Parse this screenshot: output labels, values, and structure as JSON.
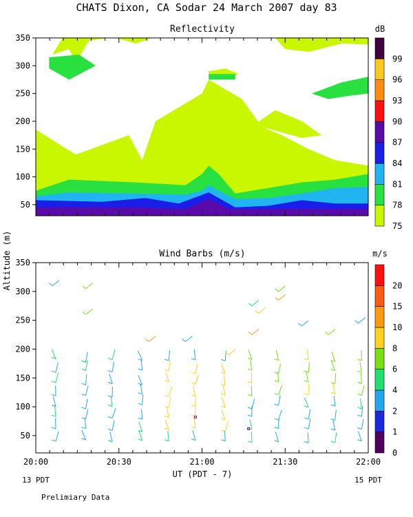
{
  "title": "CHATS Dixon, CA  Sodar  24 March 2007  day  83",
  "y_axis_label": "Altitude (m)",
  "x_axis_label": "UT  (PDT - 7)",
  "x_left_note": "13 PDT",
  "x_right_note": "15 PDT",
  "footer_note": "Prelimiary Data",
  "chart_data": [
    {
      "type": "heatmap",
      "title": "Reflectivity",
      "colorbar_label": "dB",
      "x_ticks": [
        "20:00",
        "20:30",
        "21:00",
        "21:30",
        "22:00"
      ],
      "y_ticks": [
        50,
        100,
        150,
        200,
        250,
        300,
        350
      ],
      "xlim": [
        "20:00",
        "22:00"
      ],
      "ylim": [
        30,
        350
      ],
      "levels": [
        75,
        78,
        81,
        84,
        87,
        90,
        93,
        96,
        99
      ],
      "level_colors": [
        "#c8f700",
        "#28e040",
        "#20b4f0",
        "#1a1ee8",
        "#5a0aa8",
        "#ff1010",
        "#ff8a10",
        "#ffc81e",
        "#400040"
      ],
      "approx_layer_tops_m": {
        "87": 45,
        "84": 60,
        "81": 75,
        "78": 95,
        "75": 125
      }
    },
    {
      "type": "scatter",
      "title": "Wind Barbs (m/s)",
      "colorbar_label": "m/s",
      "x_ticks": [
        "20:00",
        "20:30",
        "21:00",
        "21:30",
        "22:00"
      ],
      "y_ticks": [
        50,
        100,
        150,
        200,
        250,
        300,
        350
      ],
      "xlim": [
        "20:00",
        "22:00"
      ],
      "ylim": [
        20,
        350
      ],
      "levels": [
        0,
        1,
        2,
        4,
        6,
        8,
        10,
        15,
        20
      ],
      "level_colors": [
        "#500060",
        "#1a28e0",
        "#20a8f0",
        "#20e070",
        "#78e010",
        "#ffd21e",
        "#ff9a10",
        "#ff5a10",
        "#ff1010"
      ],
      "notable_speeds_m_per_s": {
        "low_levels_20:00_21:00": "2-4",
        "21:00_21:20_mid_levels": "8-10",
        "above_250m_21:20_21:35": "10-15"
      }
    }
  ]
}
